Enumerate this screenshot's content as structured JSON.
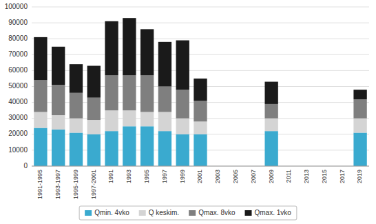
{
  "chart_data": {
    "type": "bar",
    "stacked": true,
    "grid": true,
    "legend": "bottom",
    "categories": [
      "1991-1995",
      "1993-1997",
      "1995-1999",
      "1997-2001",
      "1991",
      "1993",
      "1995",
      "1997",
      "1999",
      "2001",
      "2003",
      "2005",
      "2007",
      "2009",
      "2011",
      "2013",
      "2015",
      "2017",
      "2019"
    ],
    "series": [
      {
        "name": "Qmin. 4vko",
        "color": "#3aaacf",
        "values": [
          24000,
          23000,
          21000,
          20000,
          22000,
          25000,
          25000,
          22000,
          20000,
          20000,
          0,
          0,
          0,
          22000,
          0,
          0,
          0,
          0,
          21000
        ]
      },
      {
        "name": "Q keskim.",
        "color": "#d4d4d4",
        "values": [
          10000,
          9000,
          9000,
          9000,
          13000,
          10000,
          9000,
          12000,
          10000,
          8000,
          0,
          0,
          0,
          8000,
          0,
          0,
          0,
          0,
          9000
        ]
      },
      {
        "name": "Qmax. 8vko",
        "color": "#7f7f7f",
        "values": [
          20000,
          19000,
          16000,
          14000,
          22000,
          22000,
          23000,
          16000,
          18000,
          13000,
          0,
          0,
          0,
          9000,
          0,
          0,
          0,
          0,
          12000
        ]
      },
      {
        "name": "Qmax. 1vko",
        "color": "#1a1a1a",
        "values": [
          27000,
          24000,
          18000,
          20000,
          34000,
          36000,
          29000,
          28000,
          31000,
          14000,
          0,
          0,
          0,
          14000,
          0,
          0,
          0,
          0,
          6000
        ]
      }
    ],
    "ylim": [
      0,
      100000
    ],
    "yticks": [
      0,
      10000,
      20000,
      30000,
      40000,
      50000,
      60000,
      70000,
      80000,
      90000,
      100000
    ]
  }
}
